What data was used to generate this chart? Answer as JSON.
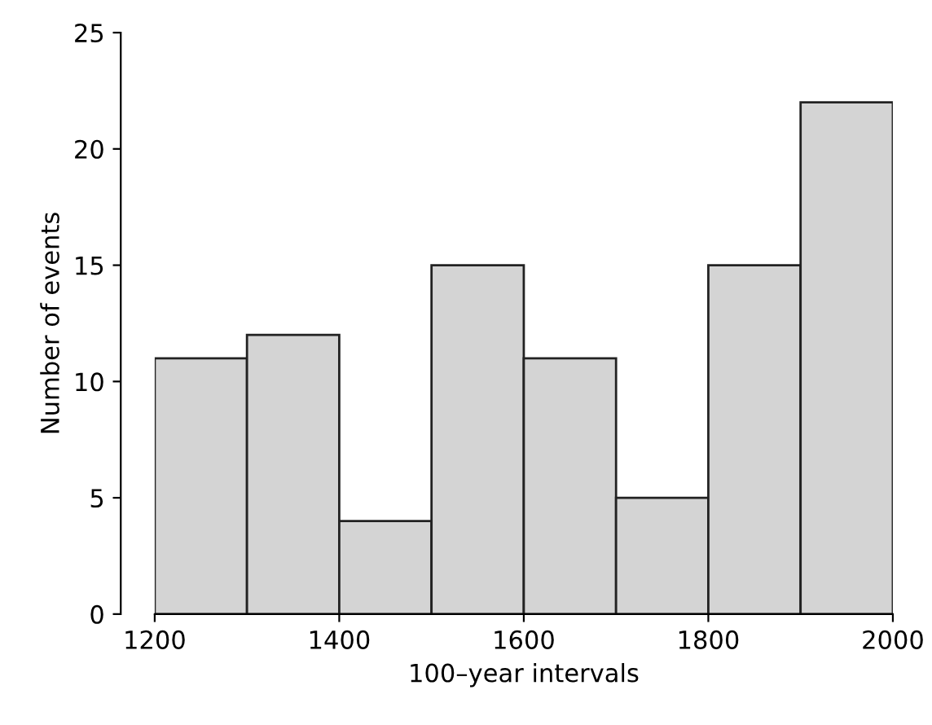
{
  "chart_data": {
    "type": "histogram",
    "xlabel": "100–year intervals",
    "ylabel": "Number of events",
    "bins": [
      1200,
      1300,
      1400,
      1500,
      1600,
      1700,
      1800,
      1900,
      2000
    ],
    "values": [
      11,
      12,
      4,
      15,
      11,
      5,
      15,
      22
    ],
    "color": "#d4d4d4",
    "xlim": [
      1200,
      2000
    ],
    "xticks": [
      1200,
      1400,
      1600,
      1800,
      2000
    ],
    "ylim": [
      0,
      25
    ],
    "yticks": [
      0,
      5,
      10,
      15,
      20,
      25
    ],
    "grid": false,
    "legend": false
  }
}
